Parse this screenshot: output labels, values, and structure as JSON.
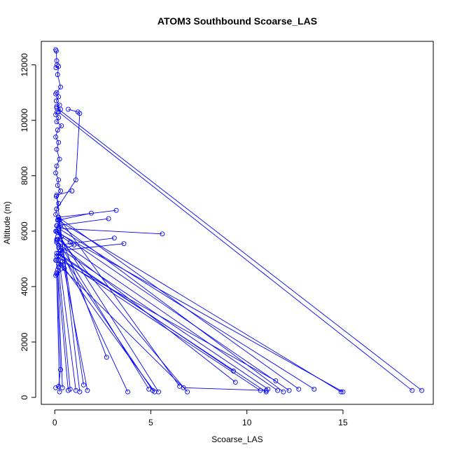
{
  "chart_data": {
    "type": "line",
    "title": "ATOM3 Southbound Scoarse_LAS",
    "xlabel": "Scoarse_LAS",
    "ylabel": "Altitude (m)",
    "xlim": [
      -0.7,
      19.7
    ],
    "ylim": [
      -250,
      12850
    ],
    "xticks": [
      0,
      5,
      10,
      15
    ],
    "yticks": [
      0,
      2000,
      4000,
      6000,
      8000,
      10000,
      12000
    ],
    "grid": false,
    "series_color": "#0000ff",
    "marker": "open-circle",
    "series": [
      {
        "x": [
          0.05,
          0.08,
          0.1,
          0.12,
          0.06,
          0.2,
          0.15,
          0.3,
          0.1,
          0.05,
          0.2,
          0.08,
          0.25,
          0.1,
          0.3,
          0.12,
          0.05,
          0.2,
          0.1,
          0.35,
          0.15,
          0.05,
          0.2,
          0.1,
          0.25,
          0.1,
          0.05,
          0.2,
          0.15,
          0.3,
          0.08,
          0.2,
          0.1,
          0.05,
          0.25,
          0.12,
          0.05,
          0.35,
          0.8,
          1.0,
          0.3,
          0.2,
          0.05,
          0.3,
          0.5,
          0.05,
          0.1,
          0.3,
          0.2,
          0.05
        ],
        "y": [
          12550,
          12500,
          12150,
          12000,
          11900,
          11950,
          11650,
          11200,
          11000,
          10950,
          10850,
          10700,
          10550,
          10500,
          10400,
          10300,
          10200,
          10100,
          9950,
          9800,
          9650,
          9400,
          9200,
          8950,
          8600,
          8350,
          8100,
          7850,
          7650,
          7450,
          7250,
          7000,
          6800,
          6600,
          6400,
          6200,
          6000,
          5800,
          5600,
          5500,
          5300,
          5100,
          4950,
          4800,
          4650,
          4400,
          4500,
          1000,
          400,
          350
        ]
      },
      {
        "x": [
          0.1,
          19.1
        ],
        "y": [
          10450,
          250
        ]
      },
      {
        "x": [
          0.2,
          18.6
        ],
        "y": [
          10300,
          250
        ]
      },
      {
        "x": [
          0.7,
          1.2,
          1.3,
          1.1,
          0.1
        ],
        "y": [
          10400,
          10300,
          10250,
          7850,
          6800
        ]
      },
      {
        "x": [
          0.15,
          15.0
        ],
        "y": [
          5950,
          200
        ]
      },
      {
        "x": [
          5.6,
          0.2,
          13.5
        ],
        "y": [
          5900,
          6100,
          300
        ]
      },
      {
        "x": [
          0.15,
          14.9
        ],
        "y": [
          6400,
          200
        ]
      },
      {
        "x": [
          3.2,
          0.2,
          12.7
        ],
        "y": [
          6750,
          6500,
          300
        ]
      },
      {
        "x": [
          0.1,
          12.2
        ],
        "y": [
          6000,
          250
        ]
      },
      {
        "x": [
          0.3,
          11.9
        ],
        "y": [
          6200,
          200
        ]
      },
      {
        "x": [
          0.15,
          11.6
        ],
        "y": [
          5700,
          250
        ]
      },
      {
        "x": [
          0.2,
          11.1
        ],
        "y": [
          5400,
          300
        ]
      },
      {
        "x": [
          0.1,
          11.0
        ],
        "y": [
          5200,
          200
        ]
      },
      {
        "x": [
          0.1,
          10.7
        ],
        "y": [
          5100,
          250
        ]
      },
      {
        "x": [
          0.4,
          11.5
        ],
        "y": [
          4900,
          600
        ]
      },
      {
        "x": [
          0.1,
          9.4
        ],
        "y": [
          5600,
          550
        ]
      },
      {
        "x": [
          0.2,
          9.3
        ],
        "y": [
          5200,
          950
        ]
      },
      {
        "x": [
          0.2,
          6.7,
          11.0
        ],
        "y": [
          4800,
          350,
          250
        ]
      },
      {
        "x": [
          0.2,
          6.5
        ],
        "y": [
          6500,
          400
        ]
      },
      {
        "x": [
          0.15,
          6.9
        ],
        "y": [
          5800,
          200
        ]
      },
      {
        "x": [
          0.1,
          5.4
        ],
        "y": [
          6000,
          200
        ]
      },
      {
        "x": [
          0.2,
          5.2
        ],
        "y": [
          4950,
          200
        ]
      },
      {
        "x": [
          0.3,
          5.1
        ],
        "y": [
          5200,
          250
        ]
      },
      {
        "x": [
          0.1,
          4.9
        ],
        "y": [
          5700,
          300
        ]
      },
      {
        "x": [
          3.1,
          0.2,
          3.8
        ],
        "y": [
          5750,
          5500,
          200
        ]
      },
      {
        "x": [
          2.8,
          0.1,
          2.7
        ],
        "y": [
          6450,
          6200,
          1450
        ]
      },
      {
        "x": [
          3.6,
          0.3,
          1.7
        ],
        "y": [
          5550,
          5300,
          250
        ]
      },
      {
        "x": [
          1.9,
          0.2,
          1.5
        ],
        "y": [
          6650,
          6400,
          450
        ]
      },
      {
        "x": [
          0.9,
          0.1,
          1.3
        ],
        "y": [
          7450,
          7300,
          200
        ]
      },
      {
        "x": [
          0.1,
          1.1
        ],
        "y": [
          5650,
          250
        ]
      },
      {
        "x": [
          0.2,
          0.8
        ],
        "y": [
          4700,
          300
        ]
      },
      {
        "x": [
          0.1,
          0.7
        ],
        "y": [
          4950,
          250
        ]
      },
      {
        "x": [
          0.15,
          0.4
        ],
        "y": [
          4600,
          350
        ]
      },
      {
        "x": [
          0.1,
          0.25
        ],
        "y": [
          4450,
          200
        ]
      }
    ]
  }
}
